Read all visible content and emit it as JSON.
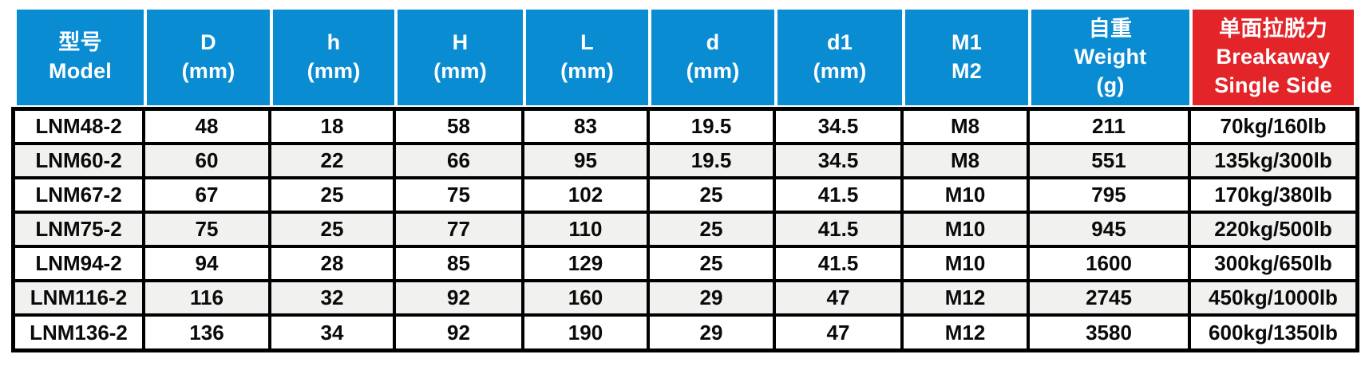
{
  "table": {
    "columns": [
      {
        "key": "model",
        "lines": [
          "型号",
          "Model"
        ],
        "accent": "blue"
      },
      {
        "key": "D",
        "lines": [
          "D",
          "(mm)"
        ],
        "accent": "blue"
      },
      {
        "key": "h",
        "lines": [
          "h",
          "(mm)"
        ],
        "accent": "blue"
      },
      {
        "key": "H",
        "lines": [
          "H",
          "(mm)"
        ],
        "accent": "blue"
      },
      {
        "key": "L",
        "lines": [
          "L",
          "(mm)"
        ],
        "accent": "blue"
      },
      {
        "key": "d",
        "lines": [
          "d",
          "(mm)"
        ],
        "accent": "blue"
      },
      {
        "key": "d1",
        "lines": [
          "d1",
          "(mm)"
        ],
        "accent": "blue"
      },
      {
        "key": "m1-m2",
        "lines": [
          "M1",
          "M2"
        ],
        "accent": "blue"
      },
      {
        "key": "weight",
        "lines": [
          "自重",
          "Weight",
          "(g)"
        ],
        "accent": "blue"
      },
      {
        "key": "breakaway",
        "lines": [
          "单面拉脱力",
          "Breakaway",
          "Single Side"
        ],
        "accent": "red"
      }
    ],
    "rows": [
      [
        "LNM48-2",
        "48",
        "18",
        "58",
        "83",
        "19.5",
        "34.5",
        "M8",
        "211",
        "70kg/160lb"
      ],
      [
        "LNM60-2",
        "60",
        "22",
        "66",
        "95",
        "19.5",
        "34.5",
        "M8",
        "551",
        "135kg/300lb"
      ],
      [
        "LNM67-2",
        "67",
        "25",
        "75",
        "102",
        "25",
        "41.5",
        "M10",
        "795",
        "170kg/380lb"
      ],
      [
        "LNM75-2",
        "75",
        "25",
        "77",
        "110",
        "25",
        "41.5",
        "M10",
        "945",
        "220kg/500lb"
      ],
      [
        "LNM94-2",
        "94",
        "28",
        "85",
        "129",
        "25",
        "41.5",
        "M10",
        "1600",
        "300kg/650lb"
      ],
      [
        "LNM116-2",
        "116",
        "32",
        "92",
        "160",
        "29",
        "47",
        "M12",
        "2745",
        "450kg/1000lb"
      ],
      [
        "LNM136-2",
        "136",
        "34",
        "92",
        "190",
        "29",
        "47",
        "M12",
        "3580",
        "600kg/1350lb"
      ]
    ],
    "colors": {
      "header_blue": "#0a8cd2",
      "header_red": "#e32429",
      "row_alt_gray": "#f1f1f0",
      "grid_border": "#000000",
      "header_text": "#ffffff",
      "body_text": "#0a0a0a"
    }
  },
  "chart_data": {
    "type": "table",
    "title": "",
    "columns": [
      "型号 Model",
      "D (mm)",
      "h (mm)",
      "H (mm)",
      "L (mm)",
      "d (mm)",
      "d1 (mm)",
      "M1 M2",
      "自重 Weight (g)",
      "单面拉脱力 Breakaway Single Side"
    ],
    "rows": [
      [
        "LNM48-2",
        48,
        18,
        58,
        83,
        19.5,
        34.5,
        "M8",
        211,
        "70kg/160lb"
      ],
      [
        "LNM60-2",
        60,
        22,
        66,
        95,
        19.5,
        34.5,
        "M8",
        551,
        "135kg/300lb"
      ],
      [
        "LNM67-2",
        67,
        25,
        75,
        102,
        25,
        41.5,
        "M10",
        795,
        "170kg/380lb"
      ],
      [
        "LNM75-2",
        75,
        25,
        77,
        110,
        25,
        41.5,
        "M10",
        945,
        "220kg/500lb"
      ],
      [
        "LNM94-2",
        94,
        28,
        85,
        129,
        25,
        41.5,
        "M10",
        1600,
        "300kg/650lb"
      ],
      [
        "LNM116-2",
        116,
        32,
        92,
        160,
        29,
        47,
        "M12",
        2745,
        "450kg/1000lb"
      ],
      [
        "LNM136-2",
        136,
        34,
        92,
        190,
        29,
        47,
        "M12",
        3580,
        "600kg/1350lb"
      ]
    ],
    "layout_hints": {
      "header_fill": "#0a8cd2",
      "last_column_fill": "#e32429",
      "alternating_rows": true,
      "grid": true
    }
  }
}
